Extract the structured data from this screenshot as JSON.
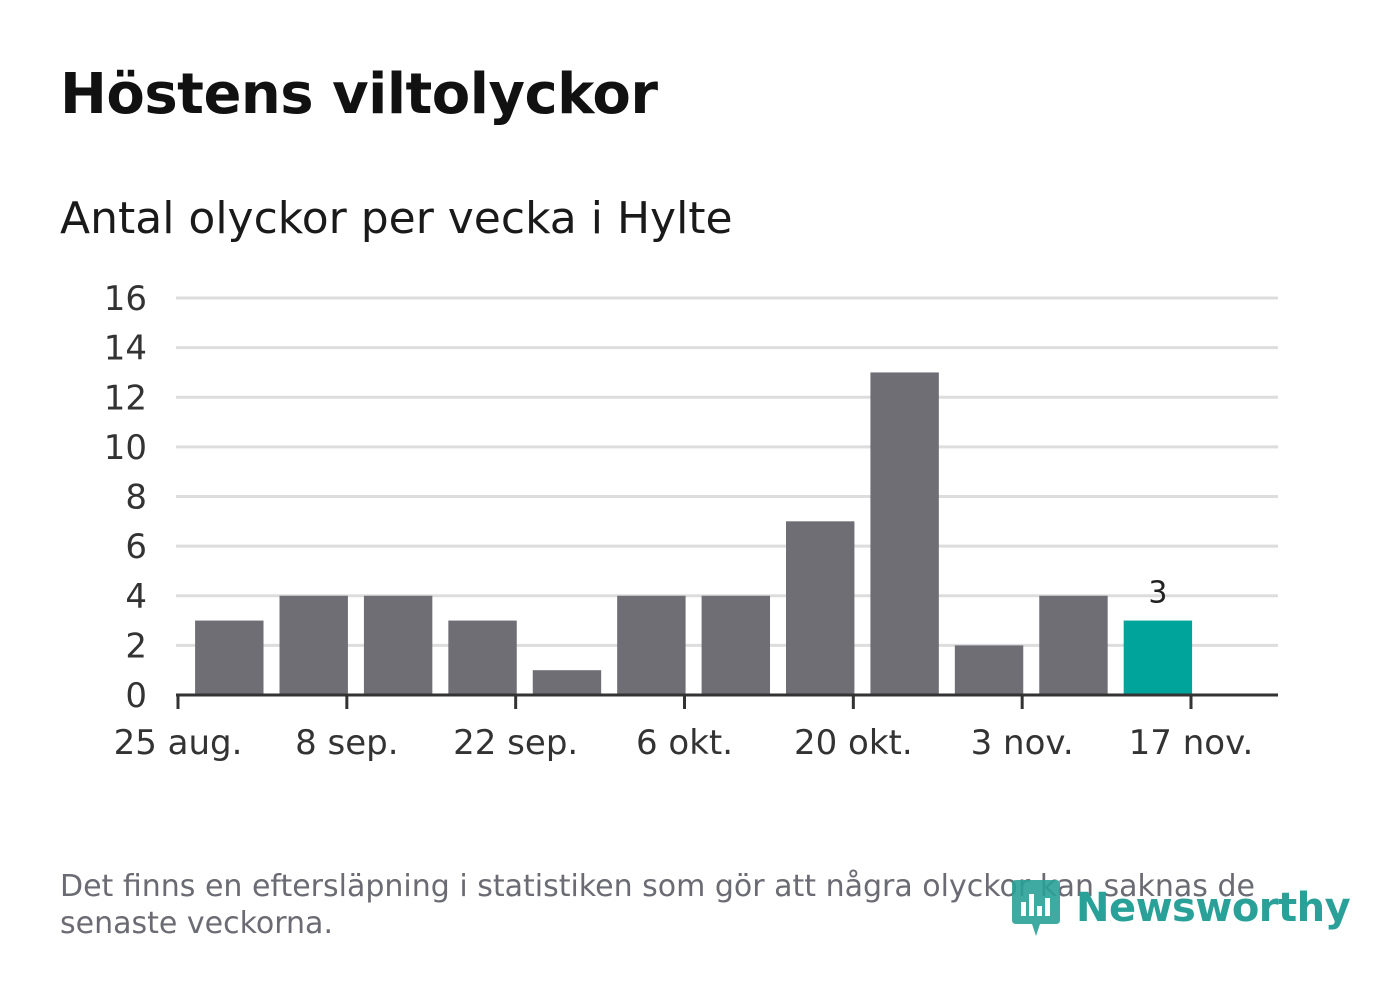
{
  "chart_data": {
    "type": "bar",
    "title": "Höstens viltolyckor",
    "subtitle": "Antal olyckor per vecka i Hylte",
    "categories": [
      "2019-08-26",
      "2019-09-02",
      "2019-09-09",
      "2019-09-16",
      "2019-09-23",
      "2019-09-30",
      "2019-10-07",
      "2019-10-14",
      "2019-10-21",
      "2019-10-28",
      "2019-11-04",
      "2019-11-11"
    ],
    "values": [
      3,
      4,
      4,
      3,
      1,
      4,
      4,
      7,
      13,
      2,
      4,
      3
    ],
    "highlight_last": true,
    "highlight_label": "3",
    "ylim": [
      0,
      16
    ],
    "y_ticks": [
      0,
      2,
      4,
      6,
      8,
      10,
      12,
      14,
      16
    ],
    "x_ticks": [
      {
        "date": "2019-08-25",
        "label": "25 aug."
      },
      {
        "date": "2019-09-08",
        "label": "8 sep."
      },
      {
        "date": "2019-09-22",
        "label": "22 sep."
      },
      {
        "date": "2019-10-06",
        "label": "6 okt."
      },
      {
        "date": "2019-10-20",
        "label": "20 okt."
      },
      {
        "date": "2019-11-03",
        "label": "3 nov."
      },
      {
        "date": "2019-11-17",
        "label": "17 nov."
      }
    ],
    "grid": true,
    "colors": {
      "bar": "#6f6e74",
      "highlight": "#00a49a",
      "grid": "#dddddd",
      "axis": "#333333"
    }
  },
  "footnote": "Det finns en eftersläpning i statistiken som gör att några olyckor kan saknas de senaste veckorna.",
  "logo": {
    "text": "Newsworthy",
    "color": "#2aa198",
    "icon": "newsworthy-logo-icon"
  }
}
